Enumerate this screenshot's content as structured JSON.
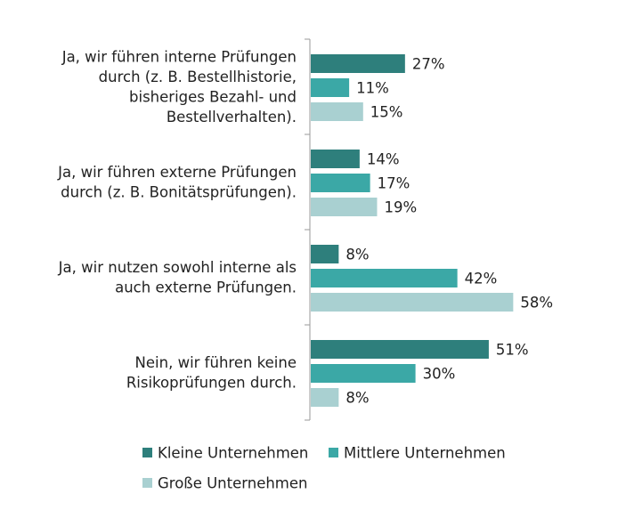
{
  "chart_data": {
    "type": "bar",
    "orientation": "horizontal",
    "categories": [
      "Ja, wir führen interne Prüfungen durch (z. B. Bestellhistorie, bisheriges Bezahl- und Bestellverhalten).",
      "Ja, wir führen externe Prüfungen durch (z. B. Bonitätsprüfungen).",
      "Ja, wir nutzen sowohl interne als auch externe Prüfungen.",
      "Nein, wir führen keine Risikoprüfungen durch."
    ],
    "category_lines": [
      [
        "Ja, wir führen interne Prüfungen",
        "durch (z. B. Bestellhistorie,",
        "bisheriges Bezahl- und",
        "Bestellverhalten)."
      ],
      [
        "Ja, wir führen externe Prüfungen",
        "durch (z. B. Bonitätsprüfungen)."
      ],
      [
        "Ja, wir nutzen sowohl interne als",
        "auch externe Prüfungen."
      ],
      [
        "Nein, wir führen keine",
        "Risikoprüfungen durch."
      ]
    ],
    "series": [
      {
        "name": "Kleine Unternehmen",
        "color": "#2e7f7c",
        "values": [
          27,
          14,
          8,
          51
        ]
      },
      {
        "name": "Mittlere Unternehmen",
        "color": "#3ba8a6",
        "values": [
          11,
          17,
          42,
          30
        ]
      },
      {
        "name": "Große Unternehmen",
        "color": "#a9d0d1",
        "values": [
          15,
          19,
          58,
          8
        ]
      }
    ],
    "value_suffix": "%",
    "xlim": [
      0,
      60
    ],
    "grid": false,
    "legend_position": "bottom-left"
  }
}
